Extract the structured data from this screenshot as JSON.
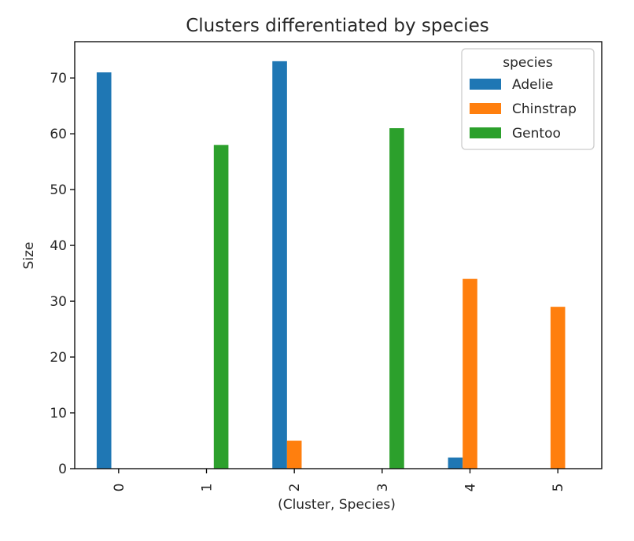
{
  "chart_data": {
    "type": "bar",
    "title": "Clusters differentiated by species",
    "xlabel": "(Cluster, Species)",
    "ylabel": "Size",
    "categories": [
      "0",
      "1",
      "2",
      "3",
      "4",
      "5"
    ],
    "series": [
      {
        "name": "Adelie",
        "values": [
          71,
          0,
          73,
          0,
          2,
          0
        ],
        "color": "#1f77b4"
      },
      {
        "name": "Chinstrap",
        "values": [
          0,
          0,
          5,
          0,
          34,
          29
        ],
        "color": "#ff7f0e"
      },
      {
        "name": "Gentoo",
        "values": [
          0,
          58,
          0,
          61,
          0,
          0
        ],
        "color": "#2ca02c"
      }
    ],
    "ylim": [
      0,
      76.5
    ],
    "yticks": [
      0,
      10,
      20,
      30,
      40,
      50,
      60,
      70
    ],
    "grid": false,
    "legend": {
      "title": "species",
      "placement": "upper right"
    }
  }
}
